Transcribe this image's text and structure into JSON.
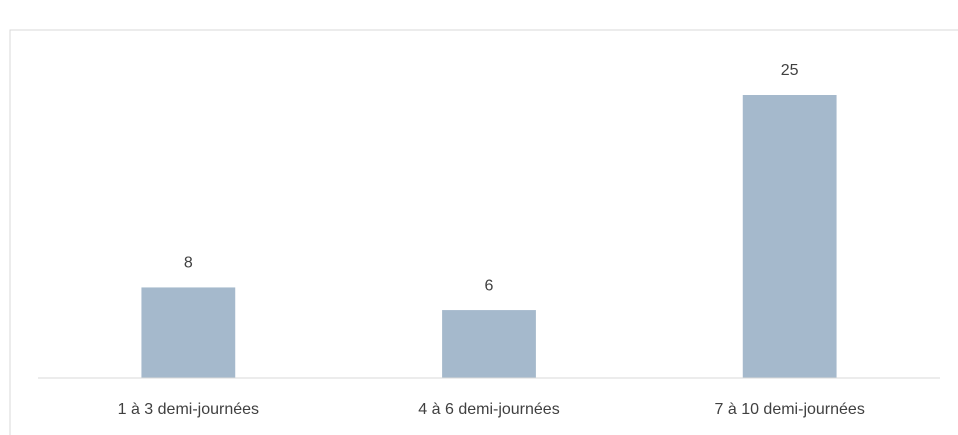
{
  "chart_data": {
    "type": "bar",
    "categories": [
      "1 à 3 demi-journées",
      "4 à 6 demi-journées",
      "7 à 10 demi-journées"
    ],
    "values": [
      8,
      6,
      25
    ],
    "color": "#a5b9cc",
    "ylim": [
      0,
      25
    ],
    "grid": false,
    "data_labels": true
  }
}
